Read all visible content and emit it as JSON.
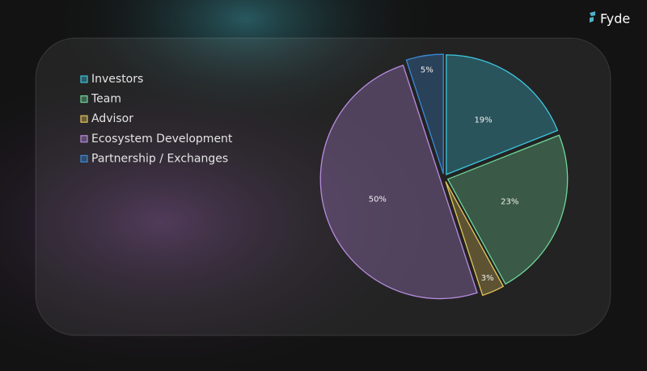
{
  "brand": "Fyde",
  "chart_data": {
    "type": "pie",
    "categories": [
      "Investors",
      "Team",
      "Advisor",
      "Ecosystem Development",
      "Partnership / Exchanges"
    ],
    "values": [
      19,
      23,
      3,
      50,
      5
    ],
    "value_labels": [
      "19%",
      "23%",
      "3%",
      "50%",
      "5%"
    ],
    "colors": [
      "#3cc8e0",
      "#6fd79a",
      "#e5c55a",
      "#b98ce0",
      "#3a8ad8"
    ],
    "legend": "left"
  }
}
